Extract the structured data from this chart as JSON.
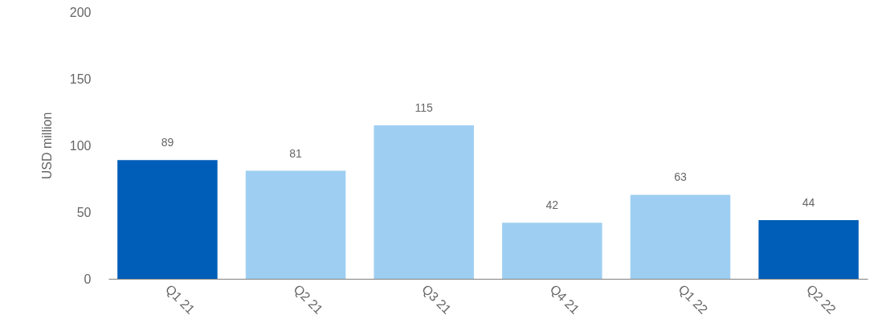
{
  "chart_data": {
    "type": "bar",
    "ylabel": "USD  million",
    "categories": [
      "Q1 21",
      "Q2 21",
      "Q3 21",
      "Q4 21",
      "Q1 22",
      "Q2 22"
    ],
    "values": [
      89,
      81,
      115,
      42,
      63,
      44
    ],
    "colors": [
      "#005eb8",
      "#9ecff2",
      "#9ecff2",
      "#9ecff2",
      "#9ecff2",
      "#005eb8"
    ],
    "ylim": [
      0,
      200
    ],
    "yticks": [
      0,
      50,
      100,
      150,
      200
    ],
    "grid": false,
    "data_labels": true
  }
}
